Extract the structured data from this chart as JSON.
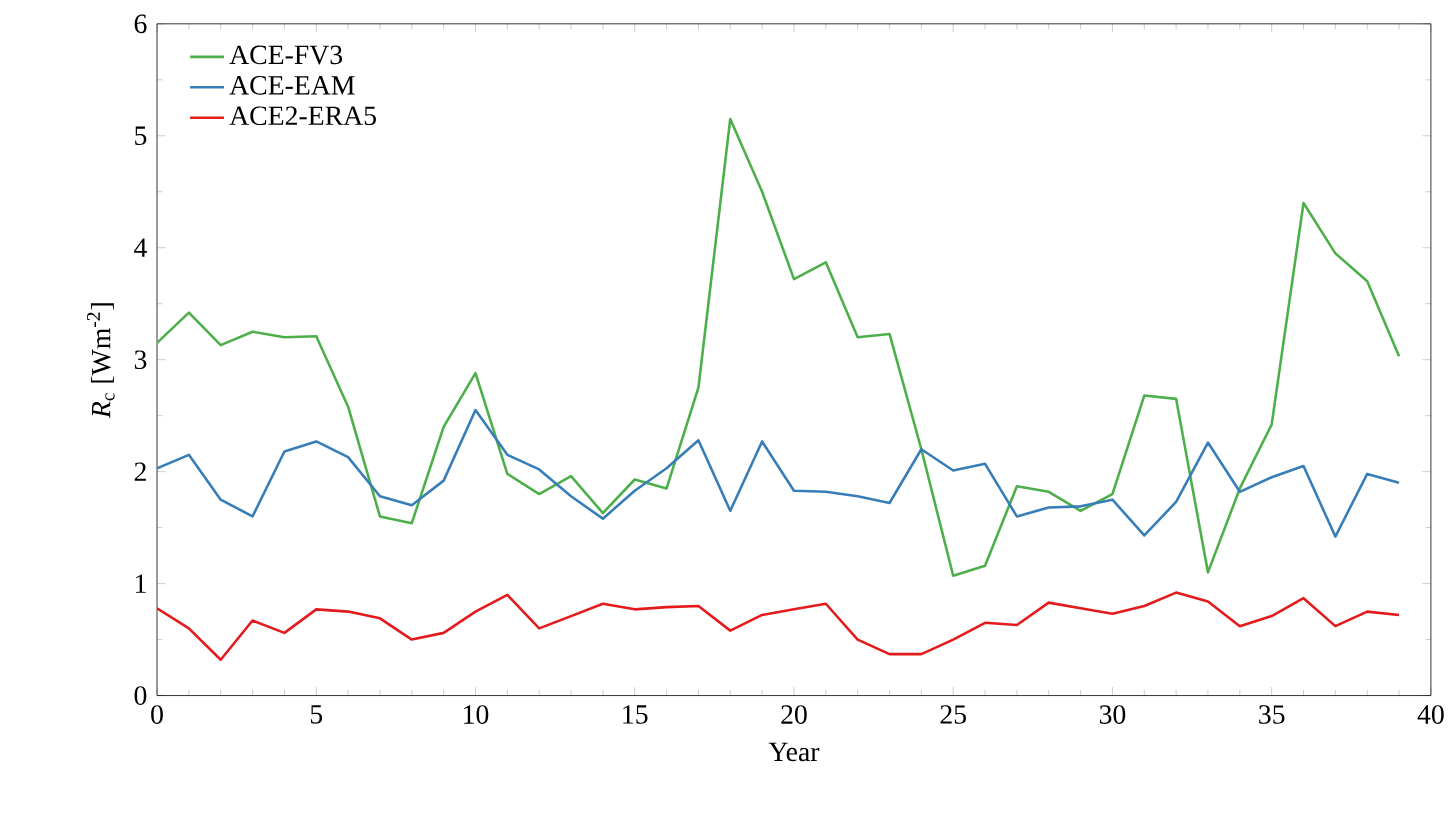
{
  "chart_data": {
    "type": "line",
    "xlabel": "Year",
    "ylabel": "*R*$_{c}$ [Wm$^{-2}$]",
    "x": [
      0,
      1,
      2,
      3,
      4,
      5,
      6,
      7,
      8,
      9,
      10,
      11,
      12,
      13,
      14,
      15,
      16,
      17,
      18,
      19,
      20,
      21,
      22,
      23,
      24,
      25,
      26,
      27,
      28,
      29,
      30,
      31,
      32,
      33,
      34,
      35,
      36,
      37,
      38,
      39
    ],
    "series": [
      {
        "name": "ACE-FV3",
        "color": "#4daf4a",
        "values": [
          3.15,
          3.42,
          3.13,
          3.25,
          3.2,
          3.21,
          2.58,
          1.6,
          1.54,
          2.4,
          2.88,
          1.98,
          1.8,
          1.96,
          1.63,
          1.93,
          1.85,
          2.75,
          5.15,
          4.5,
          3.72,
          3.87,
          3.2,
          3.23,
          2.2,
          1.07,
          1.16,
          1.87,
          1.82,
          1.65,
          1.8,
          2.68,
          2.65,
          1.1,
          1.85,
          2.42,
          4.4,
          3.95,
          3.7,
          3.03
        ]
      },
      {
        "name": "ACE-EAM",
        "color": "#377eb8",
        "values": [
          2.03,
          2.15,
          1.75,
          1.6,
          2.18,
          2.27,
          2.13,
          1.78,
          1.7,
          1.92,
          2.55,
          2.15,
          2.02,
          1.78,
          1.58,
          1.83,
          2.03,
          2.28,
          1.65,
          2.27,
          1.83,
          1.82,
          1.78,
          1.72,
          2.2,
          2.01,
          2.07,
          1.6,
          1.68,
          1.69,
          1.75,
          1.43,
          1.73,
          2.26,
          1.82,
          1.95,
          2.05,
          1.42,
          1.98,
          1.9
        ]
      },
      {
        "name": "ACE2-ERA5",
        "color": "#e41a1c",
        "values": [
          0.78,
          0.6,
          0.32,
          0.67,
          0.56,
          0.77,
          0.75,
          0.69,
          0.5,
          0.56,
          0.75,
          0.9,
          0.6,
          0.71,
          0.82,
          0.77,
          0.79,
          0.8,
          0.58,
          0.72,
          0.77,
          0.82,
          0.5,
          0.37,
          0.37,
          0.5,
          0.65,
          0.63,
          0.83,
          0.78,
          0.73,
          0.8,
          0.92,
          0.84,
          0.62,
          0.71,
          0.87,
          0.62,
          0.75,
          0.72
        ]
      }
    ],
    "xlim": [
      0,
      40
    ],
    "ylim": [
      0,
      6
    ],
    "xticks": [
      0,
      5,
      10,
      15,
      20,
      25,
      30,
      35,
      40
    ],
    "yticks": [
      0,
      1,
      2,
      3,
      4,
      5,
      6
    ],
    "grid": false,
    "legend": "top left",
    "marker": "none",
    "line_style": "solid"
  }
}
